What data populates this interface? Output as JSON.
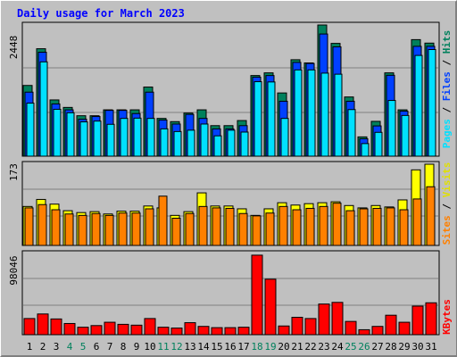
{
  "title": "Daily usage for March 2023",
  "colors": {
    "hits": "#00805c",
    "files": "#0040ff",
    "pages": "#00e0ff",
    "visits": "#ffff00",
    "sites": "#ff8000",
    "kbytes": "#ff0000",
    "background": "#c0c0c0",
    "title": "#0000ff",
    "weekend": "#00805c",
    "weekday": "#000000"
  },
  "chart_data": [
    {
      "type": "bar",
      "panel": "hits-files-pages",
      "y_scale_label": "2448",
      "ylim": [
        0,
        2448
      ],
      "legend": {
        "pages": "Pages",
        "files": "Files",
        "hits": "Hits",
        "sep": " / "
      },
      "series": [
        {
          "name": "Hits",
          "values": [
            1320,
            2005,
            1050,
            910,
            755,
            755,
            865,
            865,
            865,
            1290,
            705,
            645,
            805,
            865,
            570,
            570,
            665,
            1505,
            1555,
            1180,
            1800,
            1740,
            2448,
            2105,
            1105,
            360,
            650,
            1555,
            865,
            2175,
            2110
          ]
        },
        {
          "name": "Files",
          "values": [
            1195,
            1940,
            975,
            865,
            690,
            740,
            855,
            855,
            795,
            1195,
            675,
            600,
            780,
            705,
            510,
            510,
            570,
            1475,
            1505,
            1025,
            1750,
            1730,
            2280,
            2040,
            1025,
            325,
            565,
            1510,
            840,
            2050,
            2050
          ]
        },
        {
          "name": "Pages",
          "values": [
            990,
            1760,
            875,
            810,
            640,
            655,
            595,
            705,
            710,
            705,
            510,
            460,
            485,
            600,
            380,
            485,
            450,
            1390,
            1385,
            705,
            1610,
            1610,
            1550,
            1530,
            870,
            235,
            445,
            1040,
            760,
            1880,
            1990
          ]
        }
      ]
    },
    {
      "type": "bar",
      "panel": "visits-sites",
      "y_scale_label": "173",
      "ylim": [
        0,
        173
      ],
      "legend": {
        "sites": "Sites",
        "visits": "Visits",
        "sep": " / "
      },
      "series": [
        {
          "name": "Visits",
          "values": [
            83,
            98,
            88,
            74,
            70,
            72,
            67,
            73,
            73,
            84,
            80,
            64,
            72,
            112,
            84,
            84,
            78,
            64,
            78,
            91,
            86,
            89,
            91,
            93,
            85,
            80,
            85,
            82,
            97,
            161,
            173
          ]
        },
        {
          "name": "Sites",
          "values": [
            80,
            87,
            76,
            67,
            64,
            68,
            64,
            69,
            69,
            78,
            105,
            58,
            68,
            83,
            80,
            79,
            68,
            63,
            69,
            83,
            76,
            79,
            83,
            90,
            74,
            78,
            79,
            80,
            76,
            99,
            125
          ]
        }
      ]
    },
    {
      "type": "bar",
      "panel": "kbytes",
      "y_scale_label": "98046",
      "ylim": [
        0,
        98046
      ],
      "legend": {
        "kbytes": "KBytes"
      },
      "series": [
        {
          "name": "KBytes",
          "values": [
            19500,
            25000,
            19000,
            13500,
            9000,
            11000,
            15000,
            12500,
            11500,
            19500,
            9000,
            8000,
            14500,
            10000,
            8500,
            8500,
            9000,
            96000,
            67000,
            10500,
            21000,
            19500,
            37000,
            39000,
            16000,
            6000,
            10000,
            23500,
            15000,
            34500,
            38500
          ]
        }
      ]
    }
  ],
  "days": [
    "1",
    "2",
    "3",
    "4",
    "5",
    "6",
    "7",
    "8",
    "9",
    "10",
    "11",
    "12",
    "13",
    "14",
    "15",
    "16",
    "17",
    "18",
    "19",
    "20",
    "21",
    "22",
    "23",
    "24",
    "25",
    "26",
    "27",
    "28",
    "29",
    "30",
    "31"
  ],
  "weekend_days": [
    4,
    5,
    11,
    12,
    18,
    19,
    25,
    26
  ]
}
